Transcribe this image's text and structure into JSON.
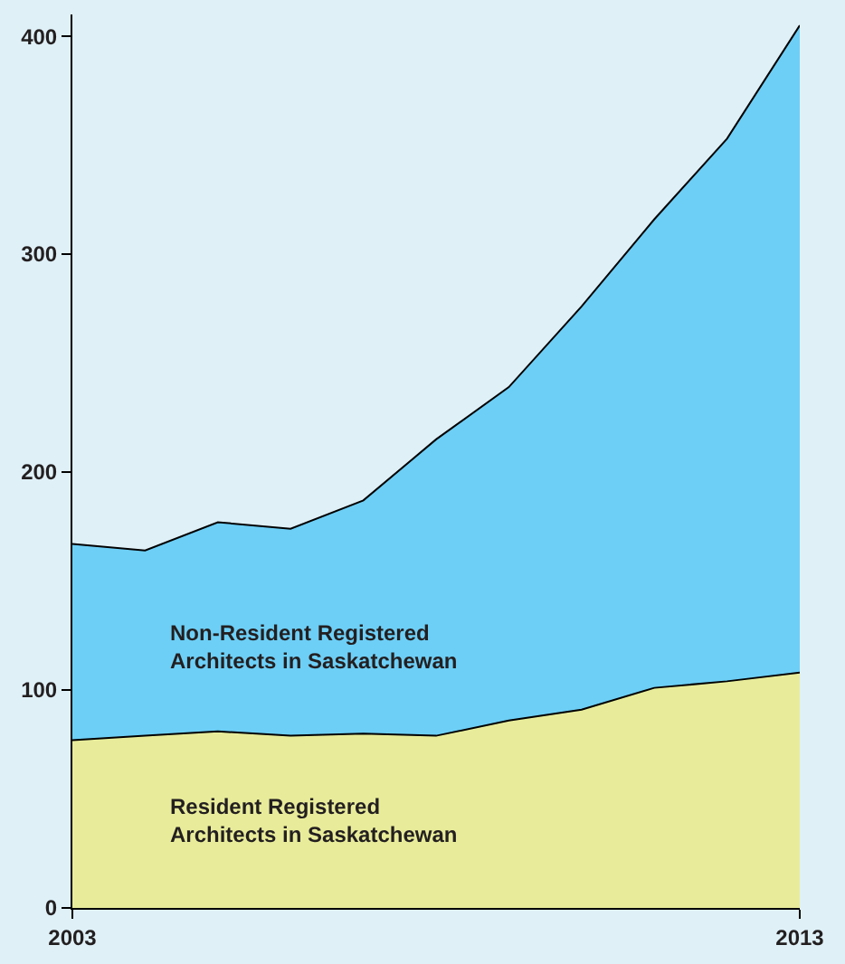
{
  "chart_data": {
    "type": "area",
    "stacked": true,
    "x": [
      2003,
      2004,
      2005,
      2006,
      2007,
      2008,
      2009,
      2010,
      2011,
      2012,
      2013
    ],
    "series": [
      {
        "name": "Resident Registered Architects in Saskatchewan",
        "color": "#e8ec9a",
        "values": [
          77,
          79,
          81,
          79,
          80,
          79,
          86,
          91,
          101,
          104,
          108
        ]
      },
      {
        "name": "Non-Resident Registered Architects in Saskatchewan",
        "color": "#6dcff6",
        "values": [
          90,
          85,
          96,
          95,
          107,
          136,
          153,
          185,
          215,
          249,
          297
        ]
      }
    ],
    "xlim": [
      2003,
      2013
    ],
    "xticks": [
      2003,
      2013
    ],
    "ylim": [
      0,
      410
    ],
    "yticks": [
      0,
      100,
      200,
      300,
      400
    ],
    "grid": false
  }
}
